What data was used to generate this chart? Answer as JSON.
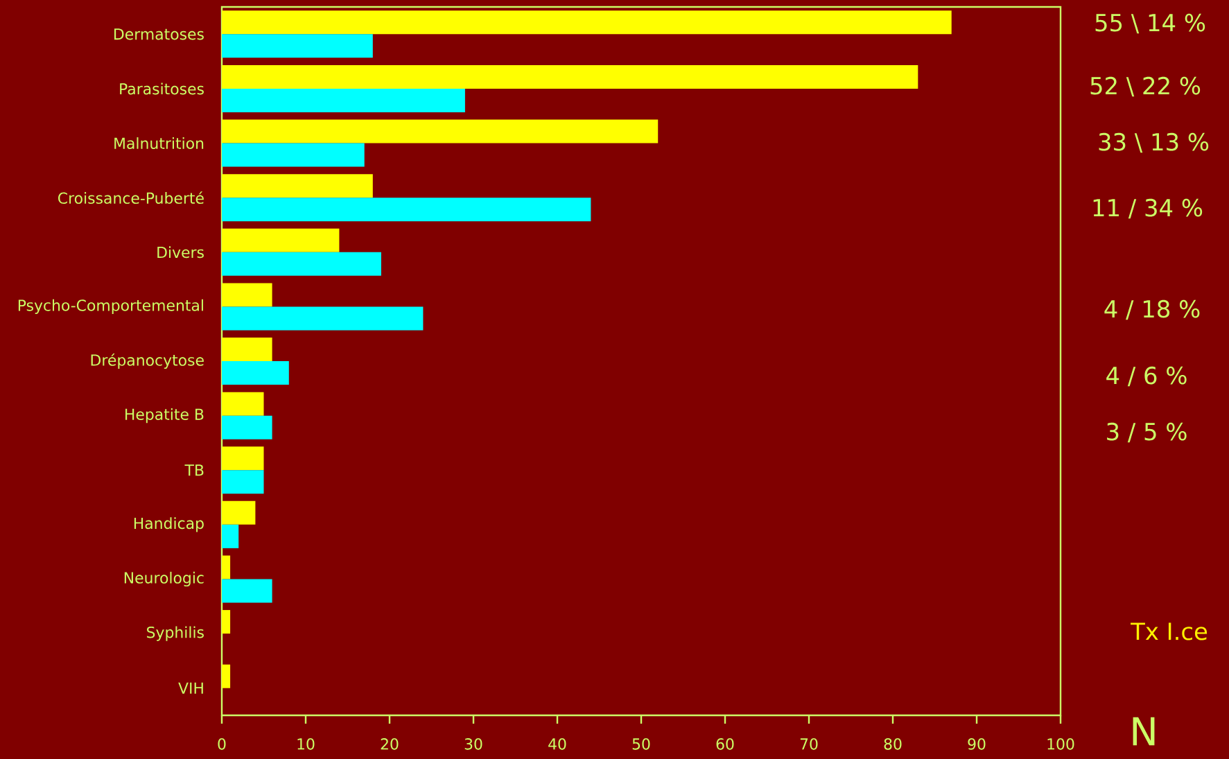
{
  "chart_data": {
    "type": "bar",
    "orientation": "horizontal",
    "xlabel": "N",
    "categories": [
      "Dermatoses",
      "Parasitoses",
      "Malnutrition",
      "Croissance-Puberté",
      "Divers",
      "Psycho-Comportemental",
      "Drépanocytose",
      "Hepatite B",
      "TB",
      "Handicap",
      "Neurologic",
      "Syphilis",
      "VIH"
    ],
    "series": [
      {
        "color": "#ffff00",
        "values": [
          87,
          83,
          52,
          18,
          14,
          6,
          6,
          5,
          5,
          4,
          1,
          1,
          1
        ]
      },
      {
        "color": "#00ffff",
        "values": [
          18,
          29,
          17,
          44,
          19,
          24,
          8,
          6,
          5,
          2,
          6,
          0,
          0
        ]
      }
    ],
    "xlim": [
      0,
      100
    ],
    "xticks": [
      0,
      10,
      20,
      30,
      40,
      50,
      60,
      70,
      80,
      90,
      100
    ],
    "annotations": [
      "55 \\ 14 %",
      "52  \\ 22 %",
      "33  \\ 13 %",
      "11 / 34 %",
      "4 / 18 %",
      "4 / 6 %",
      "3 / 5 %",
      "Tx I.ce"
    ]
  }
}
